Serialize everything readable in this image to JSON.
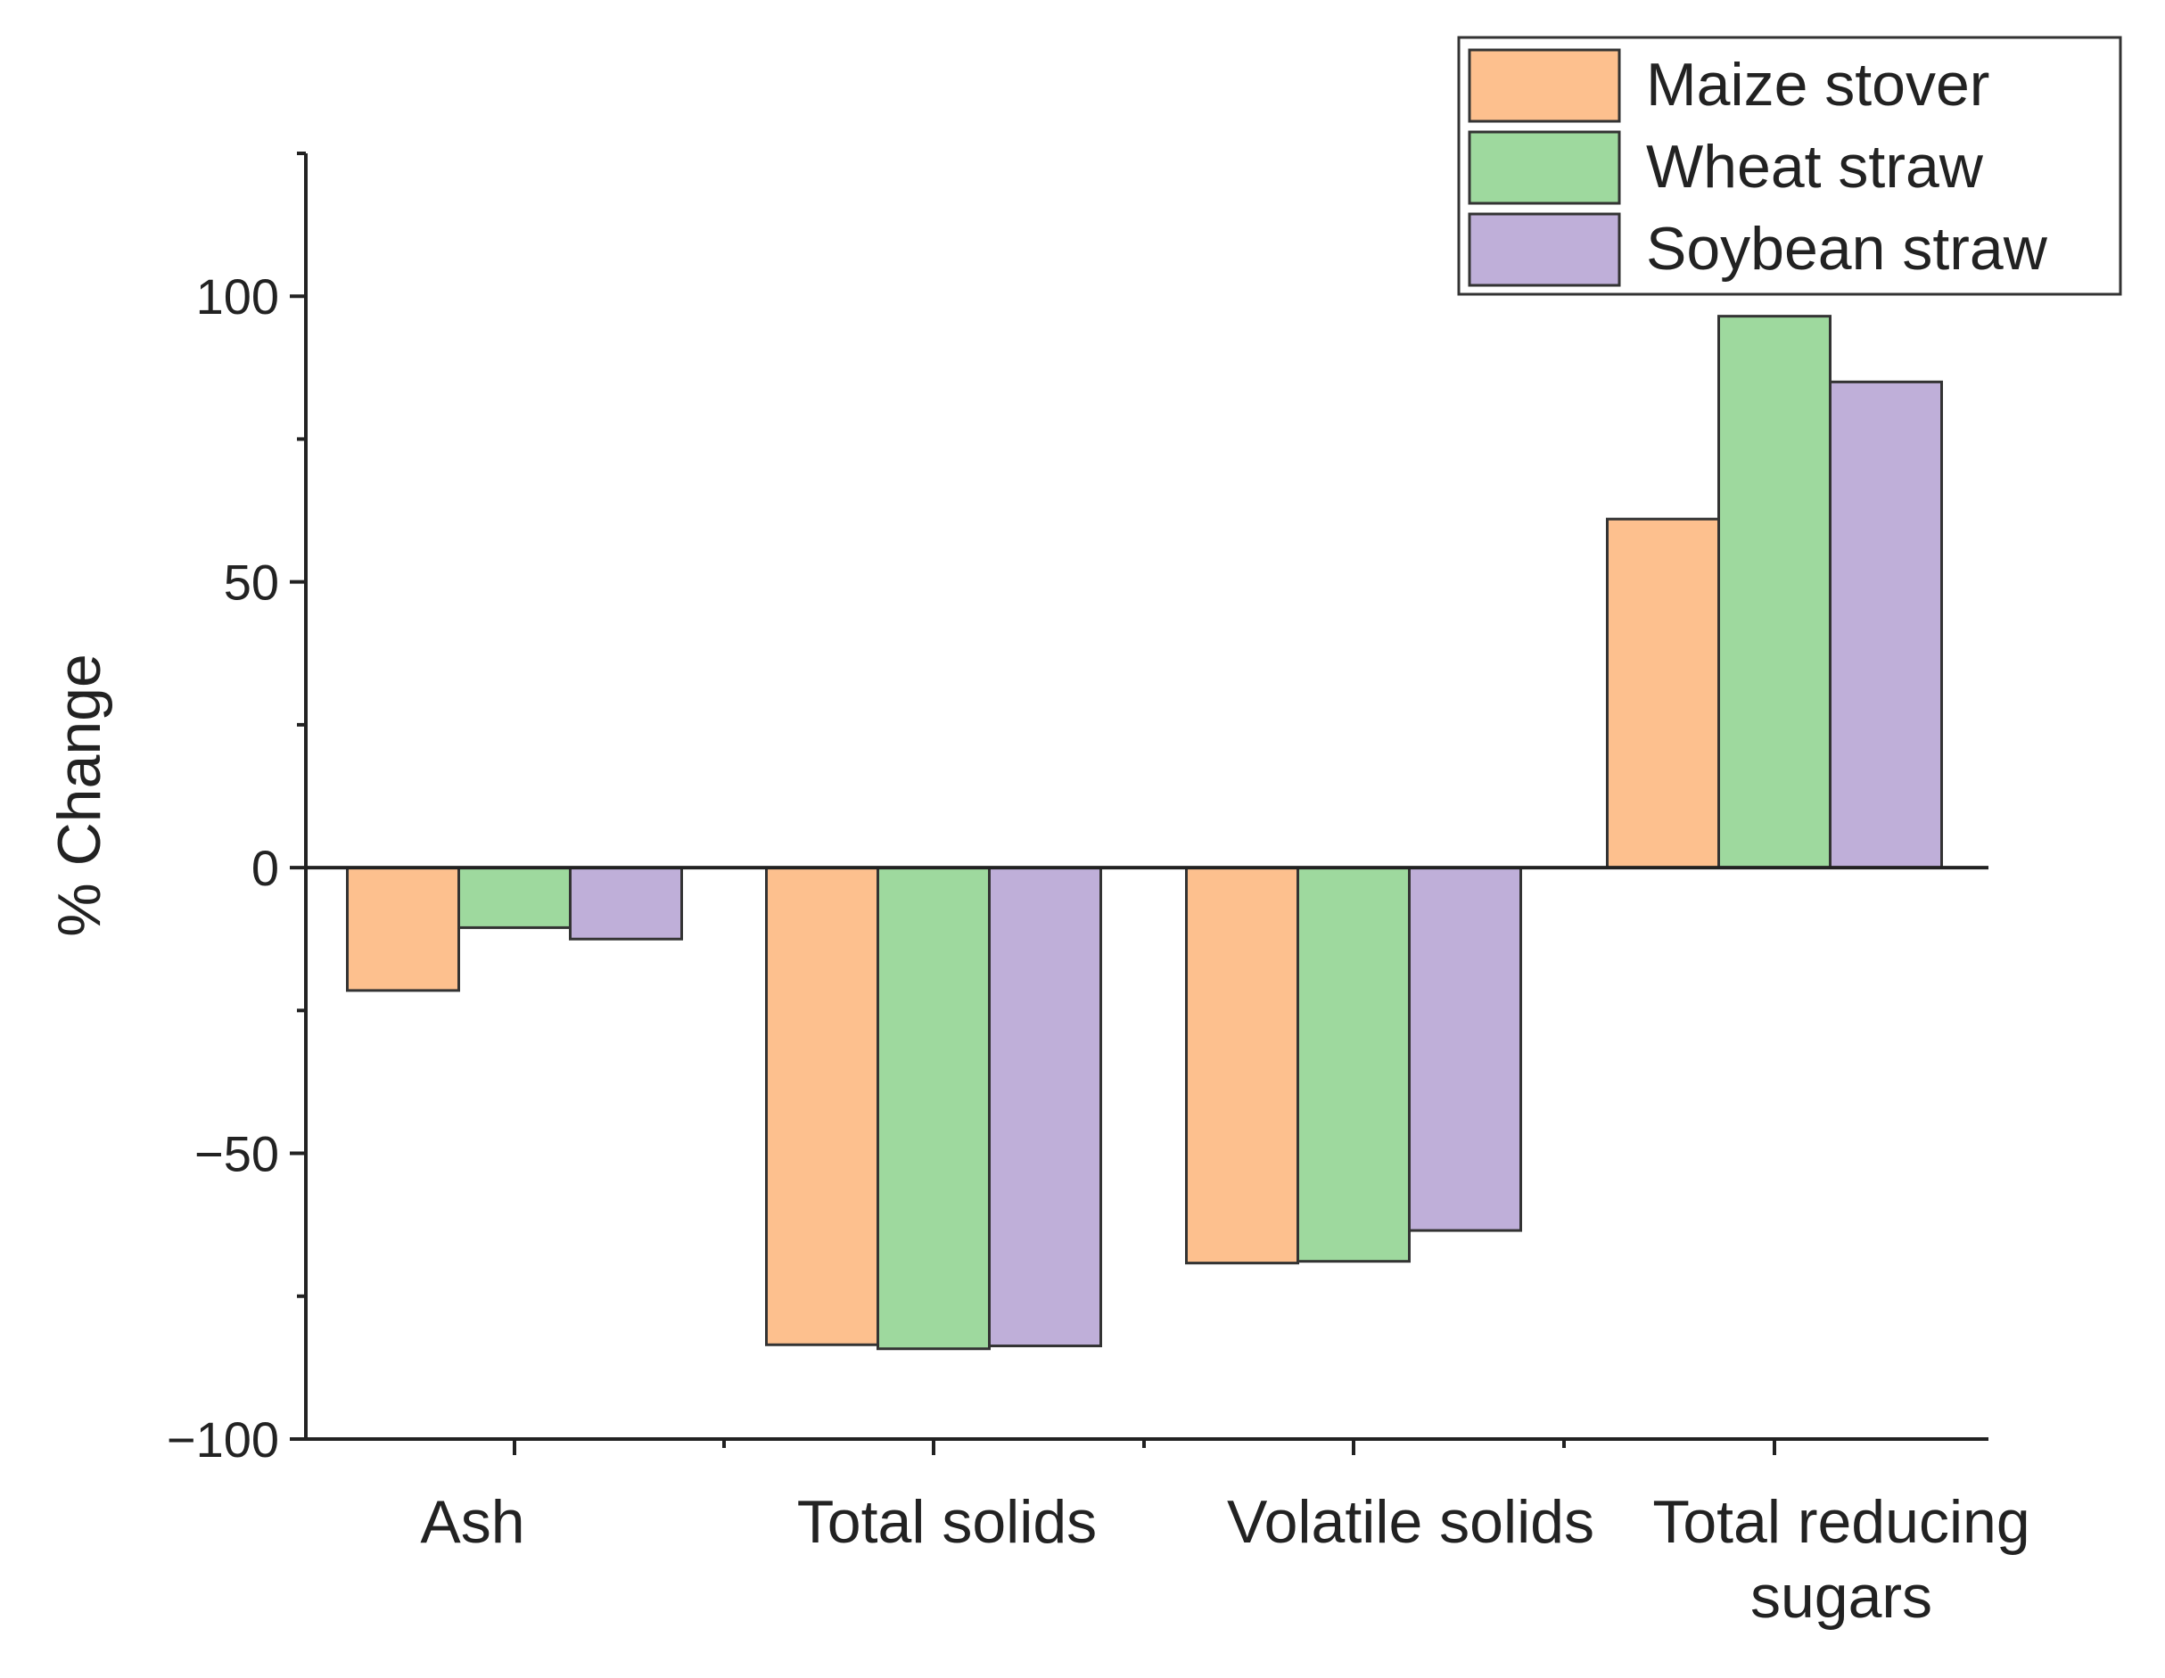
{
  "chart_data": {
    "type": "bar",
    "title": "",
    "xlabel": "",
    "ylabel": "% Change",
    "ylim": [
      -100,
      125
    ],
    "yticks": [
      -100,
      -50,
      0,
      50,
      100
    ],
    "ytick_labels": [
      "−100",
      "−50",
      "0",
      "50",
      "100"
    ],
    "grid": false,
    "legend_position": "top-right",
    "categories": [
      [
        "Ash"
      ],
      [
        "Total solids"
      ],
      [
        "Volatile solids"
      ],
      [
        "Total reducing",
        "sugars"
      ]
    ],
    "series": [
      {
        "name": "Maize stover",
        "color": "#FDC08E",
        "values": [
          -21.5,
          -83.5,
          -69.2,
          61.0
        ]
      },
      {
        "name": "Wheat straw",
        "color": "#9ED99E",
        "values": [
          -10.5,
          -84.2,
          -68.9,
          96.5
        ]
      },
      {
        "name": "Soybean straw",
        "color": "#BFAFD9",
        "values": [
          -12.5,
          -83.7,
          -63.5,
          85.0
        ]
      }
    ]
  }
}
